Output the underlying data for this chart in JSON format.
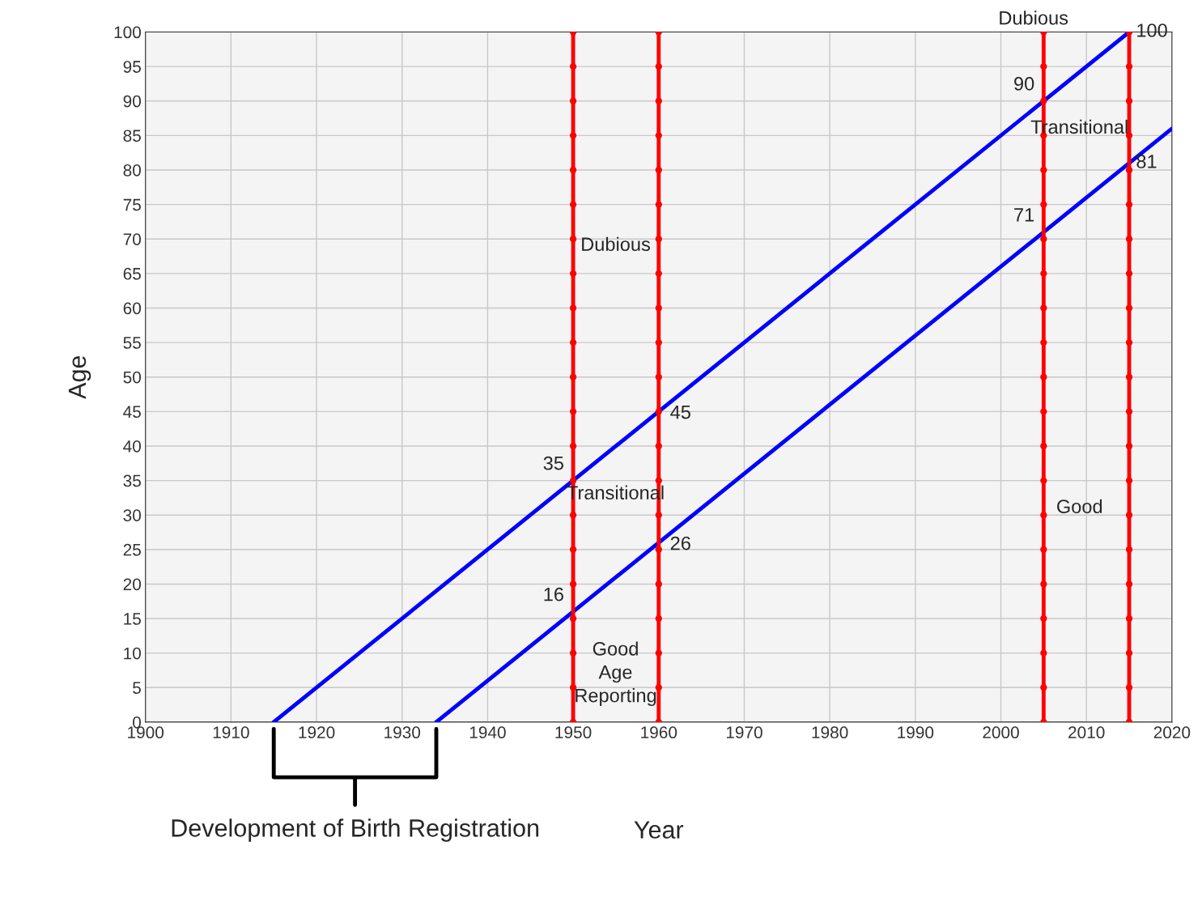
{
  "chart_data": {
    "type": "line",
    "xlabel": "Year",
    "ylabel": "Age",
    "xlim": [
      1900,
      2020
    ],
    "xticks": [
      1900,
      1910,
      1920,
      1930,
      1940,
      1950,
      1960,
      1970,
      1980,
      1990,
      2000,
      2010,
      2020
    ],
    "ylim": [
      0,
      100
    ],
    "yticks": [
      0,
      5,
      10,
      15,
      20,
      25,
      30,
      35,
      40,
      45,
      50,
      55,
      60,
      65,
      70,
      75,
      80,
      85,
      90,
      95,
      100
    ],
    "grid": true,
    "series": [
      {
        "color": "#0000ff",
        "marker": "none",
        "x": [
          1915,
          2015
        ],
        "values": [
          0,
          100
        ]
      },
      {
        "color": "#0000ff",
        "marker": "none",
        "x": [
          1934,
          2020
        ],
        "values": [
          0,
          86
        ]
      },
      {
        "color": "#ff0000",
        "marker": "circle",
        "x": [
          1950,
          1950,
          1950,
          1950,
          1950,
          1950,
          1950,
          1950,
          1950,
          1950,
          1950,
          1950,
          1950,
          1950,
          1950,
          1950,
          1950,
          1950,
          1950,
          1950,
          1950
        ],
        "values": [
          0,
          5,
          10,
          15,
          20,
          25,
          30,
          35,
          40,
          45,
          50,
          55,
          60,
          65,
          70,
          75,
          80,
          85,
          90,
          95,
          100
        ]
      },
      {
        "color": "#ff0000",
        "marker": "circle",
        "x": [
          1960,
          1960,
          1960,
          1960,
          1960,
          1960,
          1960,
          1960,
          1960,
          1960,
          1960,
          1960,
          1960,
          1960,
          1960,
          1960,
          1960,
          1960,
          1960,
          1960,
          1960
        ],
        "values": [
          0,
          5,
          10,
          15,
          20,
          25,
          30,
          35,
          40,
          45,
          50,
          55,
          60,
          65,
          70,
          75,
          80,
          85,
          90,
          95,
          100
        ]
      },
      {
        "color": "#ff0000",
        "marker": "circle",
        "x": [
          2005,
          2005,
          2005,
          2005,
          2005,
          2005,
          2005,
          2005,
          2005,
          2005,
          2005,
          2005,
          2005,
          2005,
          2005,
          2005,
          2005,
          2005,
          2005,
          2005,
          2005
        ],
        "values": [
          0,
          5,
          10,
          15,
          20,
          25,
          30,
          35,
          40,
          45,
          50,
          55,
          60,
          65,
          70,
          75,
          80,
          85,
          90,
          95,
          100
        ]
      },
      {
        "color": "#ff0000",
        "marker": "circle",
        "x": [
          2015,
          2015,
          2015,
          2015,
          2015,
          2015,
          2015,
          2015,
          2015,
          2015,
          2015,
          2015,
          2015,
          2015,
          2015,
          2015,
          2015,
          2015,
          2015,
          2015,
          2015
        ],
        "values": [
          0,
          5,
          10,
          15,
          20,
          25,
          30,
          35,
          40,
          45,
          50,
          55,
          60,
          65,
          70,
          75,
          80,
          85,
          90,
          95,
          100
        ]
      }
    ],
    "annotations": [
      {
        "text": "35",
        "x": 1950,
        "y": 35
      },
      {
        "text": "16",
        "x": 1950,
        "y": 16
      },
      {
        "text": "45",
        "x": 1960,
        "y": 45
      },
      {
        "text": "26",
        "x": 1960,
        "y": 26
      },
      {
        "text": "90",
        "x": 2005,
        "y": 90
      },
      {
        "text": "71",
        "x": 2005,
        "y": 71
      },
      {
        "text": "100",
        "x": 2015,
        "y": 100
      },
      {
        "text": "81",
        "x": 2015,
        "y": 81
      },
      "Dubious",
      "Transitional",
      "Good\nAge\nReporting",
      "Dubious",
      "Transitional",
      "Good",
      "Development of Birth Registration"
    ]
  }
}
